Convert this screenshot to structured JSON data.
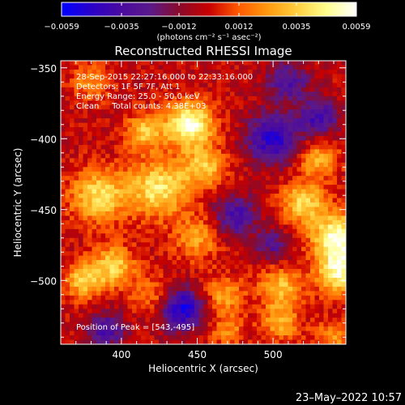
{
  "chart_data": {
    "type": "heatmap",
    "title": "Reconstructed RHESSI Image",
    "xlabel": "Heliocentric X (arcsec)",
    "ylabel": "Heliocentric Y (arcsec)",
    "xlim": [
      360,
      548
    ],
    "ylim": [
      -545,
      -345
    ],
    "x_ticks": [
      400,
      450,
      500
    ],
    "x_tick_labels": [
      "400",
      "450",
      "500"
    ],
    "y_ticks": [
      -350,
      -400,
      -450,
      -500
    ],
    "y_tick_labels": [
      "−350",
      "−400",
      "−450",
      "−500"
    ],
    "colorbar": {
      "range": [
        -0.0059,
        0.0059
      ],
      "ticks": [
        -0.0059,
        -0.0035,
        -0.0012,
        0.0012,
        0.0035,
        0.0059
      ],
      "tick_labels": [
        "−0.0059",
        "−0.0035",
        "−0.0012",
        "0.0012",
        "0.0035",
        "0.0059"
      ],
      "unit_label": "(photons cm⁻² s⁻¹ asec⁻²)",
      "colors": [
        "#0000ff",
        "#2a00c8",
        "#4a0aa0",
        "#5a1a8a",
        "#8a0a2a",
        "#c80000",
        "#ff5a00",
        "#ff9a10",
        "#ffd040",
        "#ffff90",
        "#ffffff"
      ]
    },
    "annotations": [
      "28-Sep-2015 22:27:16.000 to 22:33:16.000",
      "Detectors: 1F 5F 7F, Att 1",
      "Energy Range: 25.0 - 50.0 keV",
      "Clean     Total counts: 4.38E+03"
    ],
    "peak_label": "Position of Peak = [543,-495]",
    "peak": [
      543,
      -495
    ],
    "sources": [
      {
        "x": 445,
        "y": -390,
        "sigma": 11,
        "amp": 0.0059
      },
      {
        "x": 415,
        "y": -395,
        "sigma": 9,
        "amp": 0.0035
      },
      {
        "x": 385,
        "y": -440,
        "sigma": 13,
        "amp": 0.0042
      },
      {
        "x": 425,
        "y": -435,
        "sigma": 14,
        "amp": 0.0045
      },
      {
        "x": 455,
        "y": -420,
        "sigma": 10,
        "amp": 0.0034
      },
      {
        "x": 450,
        "y": -470,
        "sigma": 11,
        "amp": 0.0026
      },
      {
        "x": 395,
        "y": -490,
        "sigma": 10,
        "amp": 0.0038
      },
      {
        "x": 375,
        "y": -500,
        "sigma": 9,
        "amp": 0.0036
      },
      {
        "x": 420,
        "y": -510,
        "sigma": 9,
        "amp": 0.002
      },
      {
        "x": 468,
        "y": -510,
        "sigma": 9,
        "amp": 0.0028
      },
      {
        "x": 520,
        "y": -445,
        "sigma": 10,
        "amp": 0.004
      },
      {
        "x": 543,
        "y": -470,
        "sigma": 12,
        "amp": 0.0058
      },
      {
        "x": 530,
        "y": -415,
        "sigma": 9,
        "amp": 0.003
      },
      {
        "x": 505,
        "y": -505,
        "sigma": 10,
        "amp": 0.0034
      },
      {
        "x": 543,
        "y": -495,
        "sigma": 10,
        "amp": 0.0048
      },
      {
        "x": 505,
        "y": -530,
        "sigma": 9,
        "amp": 0.003
      },
      {
        "x": 470,
        "y": -535,
        "sigma": 8,
        "amp": 0.0022
      },
      {
        "x": 380,
        "y": -360,
        "sigma": 9,
        "amp": 0.0024
      },
      {
        "x": 540,
        "y": -540,
        "sigma": 8,
        "amp": 0.0026
      },
      {
        "x": 500,
        "y": -400,
        "sigma": 12,
        "amp": -0.0045
      },
      {
        "x": 475,
        "y": -455,
        "sigma": 10,
        "amp": -0.0035
      },
      {
        "x": 440,
        "y": -520,
        "sigma": 10,
        "amp": -0.005
      },
      {
        "x": 510,
        "y": -360,
        "sigma": 10,
        "amp": -0.003
      },
      {
        "x": 530,
        "y": -385,
        "sigma": 9,
        "amp": -0.0035
      },
      {
        "x": 390,
        "y": -535,
        "sigma": 9,
        "amp": -0.0032
      },
      {
        "x": 500,
        "y": -475,
        "sigma": 8,
        "amp": -0.0025
      }
    ]
  },
  "timestamp": "23–May–2022 10:57"
}
